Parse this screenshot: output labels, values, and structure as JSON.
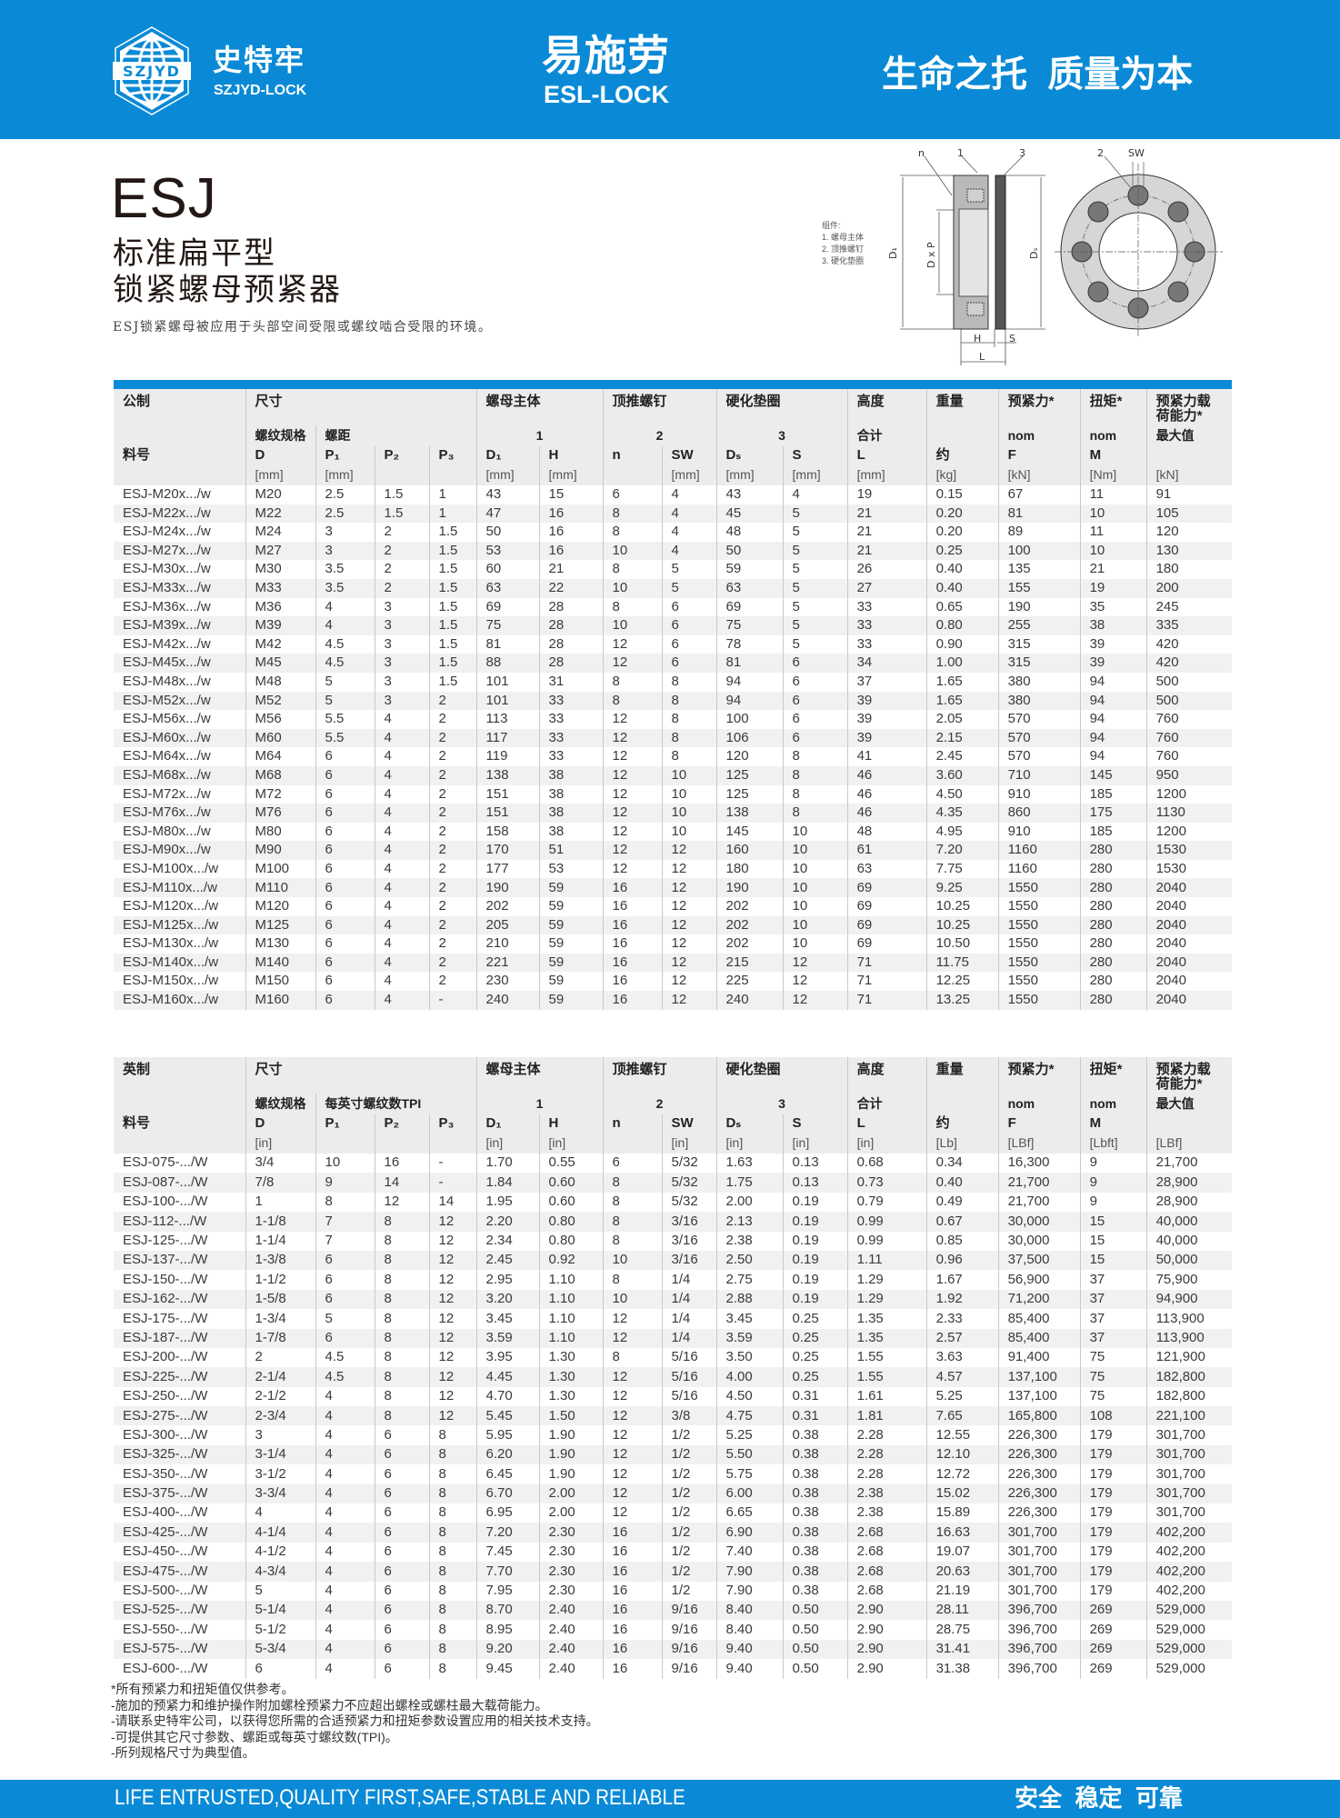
{
  "header": {
    "logo_mark": "SZJYD",
    "brand_cn": "史特牢",
    "brand_en": "SZJYD-LOCK",
    "center_cn": "易施劳",
    "center_en": "ESL-LOCK",
    "slogan": "生命之托  质量为本",
    "color": "#0a8ad6"
  },
  "product": {
    "code": "ESJ",
    "line1": "标准扁平型",
    "line2": "锁紧螺母预紧器",
    "description": "ESJ锁紧螺母被应用于头部空间受限或螺纹啮合受限的环境。"
  },
  "diagram": {
    "legend_title": "组件:",
    "legend": [
      "1. 螺母主体",
      "2. 顶推螺钉",
      "3. 硬化垫圈"
    ],
    "labels": {
      "n": "n",
      "one": "1",
      "three": "3",
      "two": "2",
      "sw": "SW",
      "d1": "D₁",
      "dxp": "D x P",
      "ds": "Dₛ",
      "h": "H",
      "s": "S",
      "l": "L"
    }
  },
  "metric": {
    "rowA": [
      "公制",
      "尺寸",
      "螺母主体",
      "顶推螺钉",
      "硬化垫圈",
      "高度",
      "重量",
      "预紧力*",
      "扭矩*",
      "预紧力载\n荷能力*"
    ],
    "rowB": [
      "",
      "螺纹规格",
      "螺距",
      "1",
      "2",
      "3",
      "合计",
      "",
      "nom",
      "nom",
      "最大值"
    ],
    "rowC": [
      "料号",
      "D",
      "P₁",
      "P₂",
      "P₃",
      "D₁",
      "H",
      "n",
      "SW",
      "Dₛ",
      "S",
      "L",
      "约",
      "F",
      "M",
      ""
    ],
    "rowD": [
      "",
      "[mm]",
      "[mm]",
      "",
      "",
      "[mm]",
      "[mm]",
      "",
      "[mm]",
      "[mm]",
      "[mm]",
      "[mm]",
      "[kg]",
      "[kN]",
      "[Nm]",
      "[kN]"
    ],
    "rows": [
      [
        "ESJ-M20x.../w",
        "M20",
        "2.5",
        "1.5",
        "1",
        "43",
        "15",
        "6",
        "4",
        "43",
        "4",
        "19",
        "0.15",
        "67",
        "11",
        "91"
      ],
      [
        "ESJ-M22x.../w",
        "M22",
        "2.5",
        "1.5",
        "1",
        "47",
        "16",
        "8",
        "4",
        "45",
        "5",
        "21",
        "0.20",
        "81",
        "10",
        "105"
      ],
      [
        "ESJ-M24x.../w",
        "M24",
        "3",
        "2",
        "1.5",
        "50",
        "16",
        "8",
        "4",
        "48",
        "5",
        "21",
        "0.20",
        "89",
        "11",
        "120"
      ],
      [
        "ESJ-M27x.../w",
        "M27",
        "3",
        "2",
        "1.5",
        "53",
        "16",
        "10",
        "4",
        "50",
        "5",
        "21",
        "0.25",
        "100",
        "10",
        "130"
      ],
      [
        "ESJ-M30x.../w",
        "M30",
        "3.5",
        "2",
        "1.5",
        "60",
        "21",
        "8",
        "5",
        "59",
        "5",
        "26",
        "0.40",
        "135",
        "21",
        "180"
      ],
      [
        "ESJ-M33x.../w",
        "M33",
        "3.5",
        "2",
        "1.5",
        "63",
        "22",
        "10",
        "5",
        "63",
        "5",
        "27",
        "0.40",
        "155",
        "19",
        "200"
      ],
      [
        "ESJ-M36x.../w",
        "M36",
        "4",
        "3",
        "1.5",
        "69",
        "28",
        "8",
        "6",
        "69",
        "5",
        "33",
        "0.65",
        "190",
        "35",
        "245"
      ],
      [
        "ESJ-M39x.../w",
        "M39",
        "4",
        "3",
        "1.5",
        "75",
        "28",
        "10",
        "6",
        "75",
        "5",
        "33",
        "0.80",
        "255",
        "38",
        "335"
      ],
      [
        "ESJ-M42x.../w",
        "M42",
        "4.5",
        "3",
        "1.5",
        "81",
        "28",
        "12",
        "6",
        "78",
        "5",
        "33",
        "0.90",
        "315",
        "39",
        "420"
      ],
      [
        "ESJ-M45x.../w",
        "M45",
        "4.5",
        "3",
        "1.5",
        "88",
        "28",
        "12",
        "6",
        "81",
        "6",
        "34",
        "1.00",
        "315",
        "39",
        "420"
      ],
      [
        "ESJ-M48x.../w",
        "M48",
        "5",
        "3",
        "1.5",
        "101",
        "31",
        "8",
        "8",
        "94",
        "6",
        "37",
        "1.65",
        "380",
        "94",
        "500"
      ],
      [
        "ESJ-M52x.../w",
        "M52",
        "5",
        "3",
        "2",
        "101",
        "33",
        "8",
        "8",
        "94",
        "6",
        "39",
        "1.65",
        "380",
        "94",
        "500"
      ],
      [
        "ESJ-M56x.../w",
        "M56",
        "5.5",
        "4",
        "2",
        "113",
        "33",
        "12",
        "8",
        "100",
        "6",
        "39",
        "2.05",
        "570",
        "94",
        "760"
      ],
      [
        "ESJ-M60x.../w",
        "M60",
        "5.5",
        "4",
        "2",
        "117",
        "33",
        "12",
        "8",
        "106",
        "6",
        "39",
        "2.15",
        "570",
        "94",
        "760"
      ],
      [
        "ESJ-M64x.../w",
        "M64",
        "6",
        "4",
        "2",
        "119",
        "33",
        "12",
        "8",
        "120",
        "8",
        "41",
        "2.45",
        "570",
        "94",
        "760"
      ],
      [
        "ESJ-M68x.../w",
        "M68",
        "6",
        "4",
        "2",
        "138",
        "38",
        "12",
        "10",
        "125",
        "8",
        "46",
        "3.60",
        "710",
        "145",
        "950"
      ],
      [
        "ESJ-M72x.../w",
        "M72",
        "6",
        "4",
        "2",
        "151",
        "38",
        "12",
        "10",
        "125",
        "8",
        "46",
        "4.50",
        "910",
        "185",
        "1200"
      ],
      [
        "ESJ-M76x.../w",
        "M76",
        "6",
        "4",
        "2",
        "151",
        "38",
        "12",
        "10",
        "138",
        "8",
        "46",
        "4.35",
        "860",
        "175",
        "1130"
      ],
      [
        "ESJ-M80x.../w",
        "M80",
        "6",
        "4",
        "2",
        "158",
        "38",
        "12",
        "10",
        "145",
        "10",
        "48",
        "4.95",
        "910",
        "185",
        "1200"
      ],
      [
        "ESJ-M90x.../w",
        "M90",
        "6",
        "4",
        "2",
        "170",
        "51",
        "12",
        "12",
        "160",
        "10",
        "61",
        "7.20",
        "1160",
        "280",
        "1530"
      ],
      [
        "ESJ-M100x.../w",
        "M100",
        "6",
        "4",
        "2",
        "177",
        "53",
        "12",
        "12",
        "180",
        "10",
        "63",
        "7.75",
        "1160",
        "280",
        "1530"
      ],
      [
        "ESJ-M110x.../w",
        "M110",
        "6",
        "4",
        "2",
        "190",
        "59",
        "16",
        "12",
        "190",
        "10",
        "69",
        "9.25",
        "1550",
        "280",
        "2040"
      ],
      [
        "ESJ-M120x.../w",
        "M120",
        "6",
        "4",
        "2",
        "202",
        "59",
        "16",
        "12",
        "202",
        "10",
        "69",
        "10.25",
        "1550",
        "280",
        "2040"
      ],
      [
        "ESJ-M125x.../w",
        "M125",
        "6",
        "4",
        "2",
        "205",
        "59",
        "16",
        "12",
        "202",
        "10",
        "69",
        "10.25",
        "1550",
        "280",
        "2040"
      ],
      [
        "ESJ-M130x.../w",
        "M130",
        "6",
        "4",
        "2",
        "210",
        "59",
        "16",
        "12",
        "202",
        "10",
        "69",
        "10.50",
        "1550",
        "280",
        "2040"
      ],
      [
        "ESJ-M140x.../w",
        "M140",
        "6",
        "4",
        "2",
        "221",
        "59",
        "16",
        "12",
        "215",
        "12",
        "71",
        "11.75",
        "1550",
        "280",
        "2040"
      ],
      [
        "ESJ-M150x.../w",
        "M150",
        "6",
        "4",
        "2",
        "230",
        "59",
        "16",
        "12",
        "225",
        "12",
        "71",
        "12.25",
        "1550",
        "280",
        "2040"
      ],
      [
        "ESJ-M160x.../w",
        "M160",
        "6",
        "4",
        "-",
        "240",
        "59",
        "16",
        "12",
        "240",
        "12",
        "71",
        "13.25",
        "1550",
        "280",
        "2040"
      ]
    ]
  },
  "imperial": {
    "rowA": [
      "英制",
      "尺寸",
      "螺母主体",
      "顶推螺钉",
      "硬化垫圈",
      "高度",
      "重量",
      "预紧力*",
      "扭矩*",
      "预紧力载\n荷能力*"
    ],
    "rowB": [
      "",
      "螺纹规格",
      "每英寸螺纹数TPI",
      "1",
      "2",
      "3",
      "合计",
      "",
      "nom",
      "nom",
      "最大值"
    ],
    "rowC": [
      "料号",
      "D",
      "P₁",
      "P₂",
      "P₃",
      "D₁",
      "H",
      "n",
      "SW",
      "Dₛ",
      "S",
      "L",
      "约",
      "F",
      "M",
      ""
    ],
    "rowD": [
      "",
      "[in]",
      "",
      "",
      "",
      "[in]",
      "[in]",
      "",
      "[in]",
      "[in]",
      "[in]",
      "[in]",
      "[Lb]",
      "[LBf]",
      "[Lbft]",
      "[LBf]"
    ],
    "rows": [
      [
        "ESJ-075-.../W",
        "3/4",
        "10",
        "16",
        "-",
        "1.70",
        "0.55",
        "6",
        "5/32",
        "1.63",
        "0.13",
        "0.68",
        "0.34",
        "16,300",
        "9",
        "21,700"
      ],
      [
        "ESJ-087-.../W",
        "7/8",
        "9",
        "14",
        "-",
        "1.84",
        "0.60",
        "8",
        "5/32",
        "1.75",
        "0.13",
        "0.73",
        "0.40",
        "21,700",
        "9",
        "28,900"
      ],
      [
        "ESJ-100-.../W",
        "1",
        "8",
        "12",
        "14",
        "1.95",
        "0.60",
        "8",
        "5/32",
        "2.00",
        "0.19",
        "0.79",
        "0.49",
        "21,700",
        "9",
        "28,900"
      ],
      [
        "ESJ-112-.../W",
        "1-1/8",
        "7",
        "8",
        "12",
        "2.20",
        "0.80",
        "8",
        "3/16",
        "2.13",
        "0.19",
        "0.99",
        "0.67",
        "30,000",
        "15",
        "40,000"
      ],
      [
        "ESJ-125-.../W",
        "1-1/4",
        "7",
        "8",
        "12",
        "2.34",
        "0.80",
        "8",
        "3/16",
        "2.38",
        "0.19",
        "0.99",
        "0.85",
        "30,000",
        "15",
        "40,000"
      ],
      [
        "ESJ-137-.../W",
        "1-3/8",
        "6",
        "8",
        "12",
        "2.45",
        "0.92",
        "10",
        "3/16",
        "2.50",
        "0.19",
        "1.11",
        "0.96",
        "37,500",
        "15",
        "50,000"
      ],
      [
        "ESJ-150-.../W",
        "1-1/2",
        "6",
        "8",
        "12",
        "2.95",
        "1.10",
        "8",
        "1/4",
        "2.75",
        "0.19",
        "1.29",
        "1.67",
        "56,900",
        "37",
        "75,900"
      ],
      [
        "ESJ-162-.../W",
        "1-5/8",
        "6",
        "8",
        "12",
        "3.20",
        "1.10",
        "10",
        "1/4",
        "2.88",
        "0.19",
        "1.29",
        "1.92",
        "71,200",
        "37",
        "94,900"
      ],
      [
        "ESJ-175-.../W",
        "1-3/4",
        "5",
        "8",
        "12",
        "3.45",
        "1.10",
        "12",
        "1/4",
        "3.45",
        "0.25",
        "1.35",
        "2.33",
        "85,400",
        "37",
        "113,900"
      ],
      [
        "ESJ-187-.../W",
        "1-7/8",
        "6",
        "8",
        "12",
        "3.59",
        "1.10",
        "12",
        "1/4",
        "3.59",
        "0.25",
        "1.35",
        "2.57",
        "85,400",
        "37",
        "113,900"
      ],
      [
        "ESJ-200-.../W",
        "2",
        "4.5",
        "8",
        "12",
        "3.95",
        "1.30",
        "8",
        "5/16",
        "3.50",
        "0.25",
        "1.55",
        "3.63",
        "91,400",
        "75",
        "121,900"
      ],
      [
        "ESJ-225-.../W",
        "2-1/4",
        "4.5",
        "8",
        "12",
        "4.45",
        "1.30",
        "12",
        "5/16",
        "4.00",
        "0.25",
        "1.55",
        "4.57",
        "137,100",
        "75",
        "182,800"
      ],
      [
        "ESJ-250-.../W",
        "2-1/2",
        "4",
        "8",
        "12",
        "4.70",
        "1.30",
        "12",
        "5/16",
        "4.50",
        "0.31",
        "1.61",
        "5.25",
        "137,100",
        "75",
        "182,800"
      ],
      [
        "ESJ-275-.../W",
        "2-3/4",
        "4",
        "8",
        "12",
        "5.45",
        "1.50",
        "12",
        "3/8",
        "4.75",
        "0.31",
        "1.81",
        "7.65",
        "165,800",
        "108",
        "221,100"
      ],
      [
        "ESJ-300-.../W",
        "3",
        "4",
        "6",
        "8",
        "5.95",
        "1.90",
        "12",
        "1/2",
        "5.25",
        "0.38",
        "2.28",
        "12.55",
        "226,300",
        "179",
        "301,700"
      ],
      [
        "ESJ-325-.../W",
        "3-1/4",
        "4",
        "6",
        "8",
        "6.20",
        "1.90",
        "12",
        "1/2",
        "5.50",
        "0.38",
        "2.28",
        "12.10",
        "226,300",
        "179",
        "301,700"
      ],
      [
        "ESJ-350-.../W",
        "3-1/2",
        "4",
        "6",
        "8",
        "6.45",
        "1.90",
        "12",
        "1/2",
        "5.75",
        "0.38",
        "2.28",
        "12.72",
        "226,300",
        "179",
        "301,700"
      ],
      [
        "ESJ-375-.../W",
        "3-3/4",
        "4",
        "6",
        "8",
        "6.70",
        "2.00",
        "12",
        "1/2",
        "6.00",
        "0.38",
        "2.38",
        "15.02",
        "226,300",
        "179",
        "301,700"
      ],
      [
        "ESJ-400-.../W",
        "4",
        "4",
        "6",
        "8",
        "6.95",
        "2.00",
        "12",
        "1/2",
        "6.65",
        "0.38",
        "2.38",
        "15.89",
        "226,300",
        "179",
        "301,700"
      ],
      [
        "ESJ-425-.../W",
        "4-1/4",
        "4",
        "6",
        "8",
        "7.20",
        "2.30",
        "16",
        "1/2",
        "6.90",
        "0.38",
        "2.68",
        "16.63",
        "301,700",
        "179",
        "402,200"
      ],
      [
        "ESJ-450-.../W",
        "4-1/2",
        "4",
        "6",
        "8",
        "7.45",
        "2.30",
        "16",
        "1/2",
        "7.40",
        "0.38",
        "2.68",
        "19.07",
        "301,700",
        "179",
        "402,200"
      ],
      [
        "ESJ-475-.../W",
        "4-3/4",
        "4",
        "6",
        "8",
        "7.70",
        "2.30",
        "16",
        "1/2",
        "7.90",
        "0.38",
        "2.68",
        "20.63",
        "301,700",
        "179",
        "402,200"
      ],
      [
        "ESJ-500-.../W",
        "5",
        "4",
        "6",
        "8",
        "7.95",
        "2.30",
        "16",
        "1/2",
        "7.90",
        "0.38",
        "2.68",
        "21.19",
        "301,700",
        "179",
        "402,200"
      ],
      [
        "ESJ-525-.../W",
        "5-1/4",
        "4",
        "6",
        "8",
        "8.70",
        "2.40",
        "16",
        "9/16",
        "8.40",
        "0.50",
        "2.90",
        "28.11",
        "396,700",
        "269",
        "529,000"
      ],
      [
        "ESJ-550-.../W",
        "5-1/2",
        "4",
        "6",
        "8",
        "8.95",
        "2.40",
        "16",
        "9/16",
        "8.40",
        "0.50",
        "2.90",
        "28.75",
        "396,700",
        "269",
        "529,000"
      ],
      [
        "ESJ-575-.../W",
        "5-3/4",
        "4",
        "6",
        "8",
        "9.20",
        "2.40",
        "16",
        "9/16",
        "9.40",
        "0.50",
        "2.90",
        "31.41",
        "396,700",
        "269",
        "529,000"
      ],
      [
        "ESJ-600-.../W",
        "6",
        "4",
        "6",
        "8",
        "9.45",
        "2.40",
        "16",
        "9/16",
        "9.40",
        "0.50",
        "2.90",
        "31.38",
        "396,700",
        "269",
        "529,000"
      ]
    ]
  },
  "notes": [
    "*所有预紧力和扭矩值仅供参考。",
    "-施加的预紧力和维护操作附加螺栓预紧力不应超出螺栓或螺柱最大载荷能力。",
    "-请联系史特牢公司，以获得您所需的合适预紧力和扭矩参数设置应用的相关技术支持。",
    "-可提供其它尺寸参数、螺距或每英寸螺纹数(TPI)。",
    "-所列规格尺寸为典型值。"
  ],
  "footer": {
    "slogan_en": "LIFE ENTRUSTED,QUALITY FIRST,SAFE,STABLE AND RELIABLE",
    "slogan_cn": "安全  稳定  可靠"
  }
}
